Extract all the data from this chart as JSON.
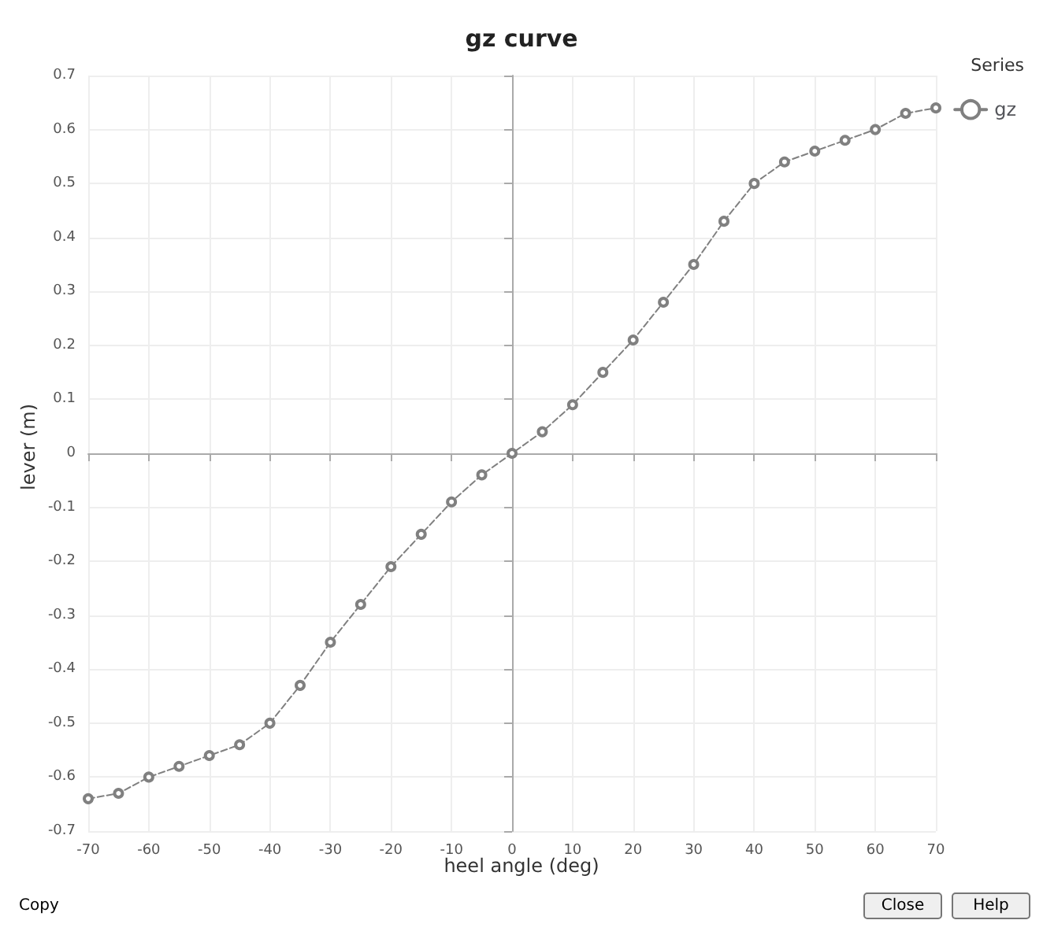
{
  "chart_data": {
    "type": "line",
    "title": "gz curve",
    "xlabel": "heel angle (deg)",
    "ylabel": "lever (m)",
    "legend_title": "Series",
    "x": [
      -70,
      -65,
      -60,
      -55,
      -50,
      -45,
      -40,
      -35,
      -30,
      -25,
      -20,
      -15,
      -10,
      -5,
      0,
      5,
      10,
      15,
      20,
      25,
      30,
      35,
      40,
      45,
      50,
      55,
      60,
      65,
      70
    ],
    "series": [
      {
        "name": "gz",
        "color": "#808080",
        "values": [
          -0.64,
          -0.63,
          -0.6,
          -0.58,
          -0.56,
          -0.54,
          -0.5,
          -0.43,
          -0.35,
          -0.28,
          -0.21,
          -0.15,
          -0.09,
          -0.04,
          0,
          0.04,
          0.09,
          0.15,
          0.21,
          0.28,
          0.35,
          0.43,
          0.5,
          0.54,
          0.56,
          0.58,
          0.6,
          0.63,
          0.64
        ]
      }
    ],
    "xlim": [
      -70,
      70
    ],
    "xticks": [
      -70,
      -60,
      -50,
      -40,
      -30,
      -20,
      -10,
      0,
      10,
      20,
      30,
      40,
      50,
      60,
      70
    ],
    "ylim": [
      -0.7,
      0.7
    ],
    "yticks": [
      -0.7,
      -0.6,
      -0.5,
      -0.4,
      -0.3,
      -0.2,
      -0.1,
      0,
      0.1,
      0.2,
      0.3,
      0.4,
      0.5,
      0.6,
      0.7
    ],
    "grid": true,
    "legend": "top right",
    "marker": "circle",
    "line_style": "dashed",
    "annotations": [
      "Copy",
      "Close",
      "Help"
    ]
  }
}
